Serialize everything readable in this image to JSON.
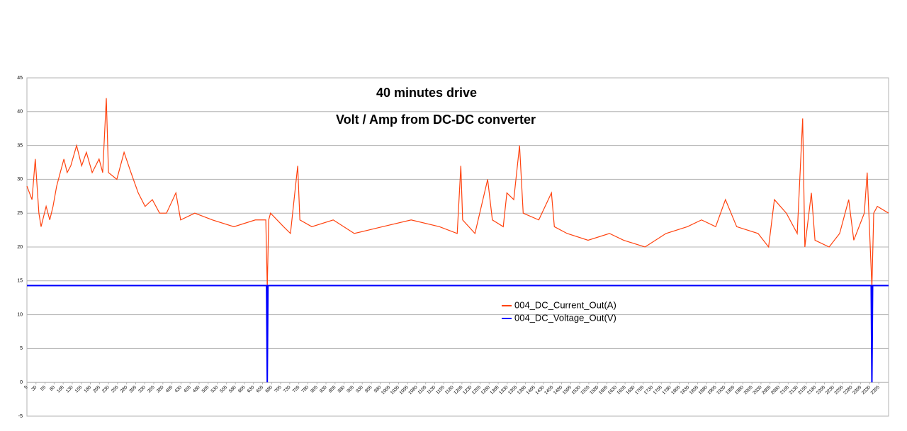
{
  "chart_data": {
    "type": "line",
    "title": "40 minutes drive",
    "subtitle": "Volt / Amp from DC-DC converter",
    "xlim": [
      5,
      2382
    ],
    "xticks": [
      5,
      30,
      55,
      80,
      105,
      130,
      155,
      180,
      205,
      230,
      255,
      280,
      305,
      330,
      355,
      380,
      405,
      430,
      455,
      480,
      505,
      530,
      555,
      580,
      605,
      630,
      655,
      680,
      705,
      730,
      755,
      780,
      805,
      830,
      855,
      880,
      905,
      930,
      955,
      980,
      1005,
      1030,
      1055,
      1080,
      1105,
      1130,
      1155,
      1180,
      1205,
      1230,
      1255,
      1280,
      1305,
      1330,
      1355,
      1380,
      1405,
      1430,
      1455,
      1480,
      1505,
      1530,
      1555,
      1580,
      1605,
      1630,
      1655,
      1680,
      1705,
      1730,
      1755,
      1780,
      1805,
      1830,
      1855,
      1880,
      1905,
      1930,
      1955,
      1980,
      2005,
      2030,
      2055,
      2080,
      2105,
      2130,
      2155,
      2180,
      2205,
      2230,
      2255,
      2280,
      2305,
      2330,
      2355
    ],
    "ylim": [
      -5,
      45
    ],
    "yticks": [
      -5,
      0,
      5,
      10,
      15,
      20,
      25,
      30,
      35,
      40,
      45
    ],
    "grid": true,
    "legend": "center",
    "series": [
      {
        "name": "004_DC_Current_Out(A)",
        "color": "#ff420e",
        "x": [
          5,
          19,
          28,
          38,
          44,
          58,
          68,
          77,
          87,
          97,
          107,
          116,
          126,
          142,
          156,
          169,
          185,
          204,
          214,
          224,
          230,
          253,
          273,
          292,
          312,
          331,
          351,
          371,
          390,
          416,
          429,
          468,
          517,
          576,
          635,
          664,
          668,
          672,
          677,
          713,
          732,
          752,
          758,
          791,
          850,
          908,
          986,
          1065,
          1143,
          1192,
          1202,
          1207,
          1241,
          1276,
          1289,
          1319,
          1329,
          1348,
          1364,
          1374,
          1417,
          1452,
          1460,
          1495,
          1553,
          1612,
          1651,
          1710,
          1768,
          1827,
          1866,
          1905,
          1932,
          1963,
          2022,
          2051,
          2067,
          2100,
          2130,
          2145,
          2151,
          2169,
          2179,
          2218,
          2247,
          2272,
          2286,
          2315,
          2323,
          2336,
          2341,
          2351,
          2382
        ],
        "values": [
          29,
          27,
          33,
          25,
          23,
          26,
          24,
          26,
          29,
          31,
          33,
          31,
          32,
          35,
          32,
          34,
          31,
          33,
          31,
          42,
          31,
          30,
          34,
          31,
          28,
          26,
          27,
          25,
          25,
          28,
          24,
          25,
          24,
          23,
          24,
          24,
          14,
          24,
          25,
          23,
          22,
          32,
          24,
          23,
          24,
          22,
          23,
          24,
          23,
          22,
          32,
          24,
          22,
          30,
          24,
          23,
          28,
          27,
          35,
          25,
          24,
          28,
          23,
          22,
          21,
          22,
          21,
          20,
          22,
          23,
          24,
          23,
          27,
          23,
          22,
          20,
          27,
          25,
          22,
          39,
          20,
          28,
          21,
          20,
          22,
          27,
          21,
          25,
          31,
          14,
          25,
          26,
          25
        ]
      },
      {
        "name": "004_DC_Voltage_Out(V)",
        "color": "#0000ff",
        "x": [
          5,
          666,
          668,
          670,
          2334,
          2336,
          2338,
          2382
        ],
        "values": [
          14.3,
          14.3,
          0,
          14.3,
          14.3,
          0,
          14.3,
          14.3
        ]
      }
    ]
  }
}
